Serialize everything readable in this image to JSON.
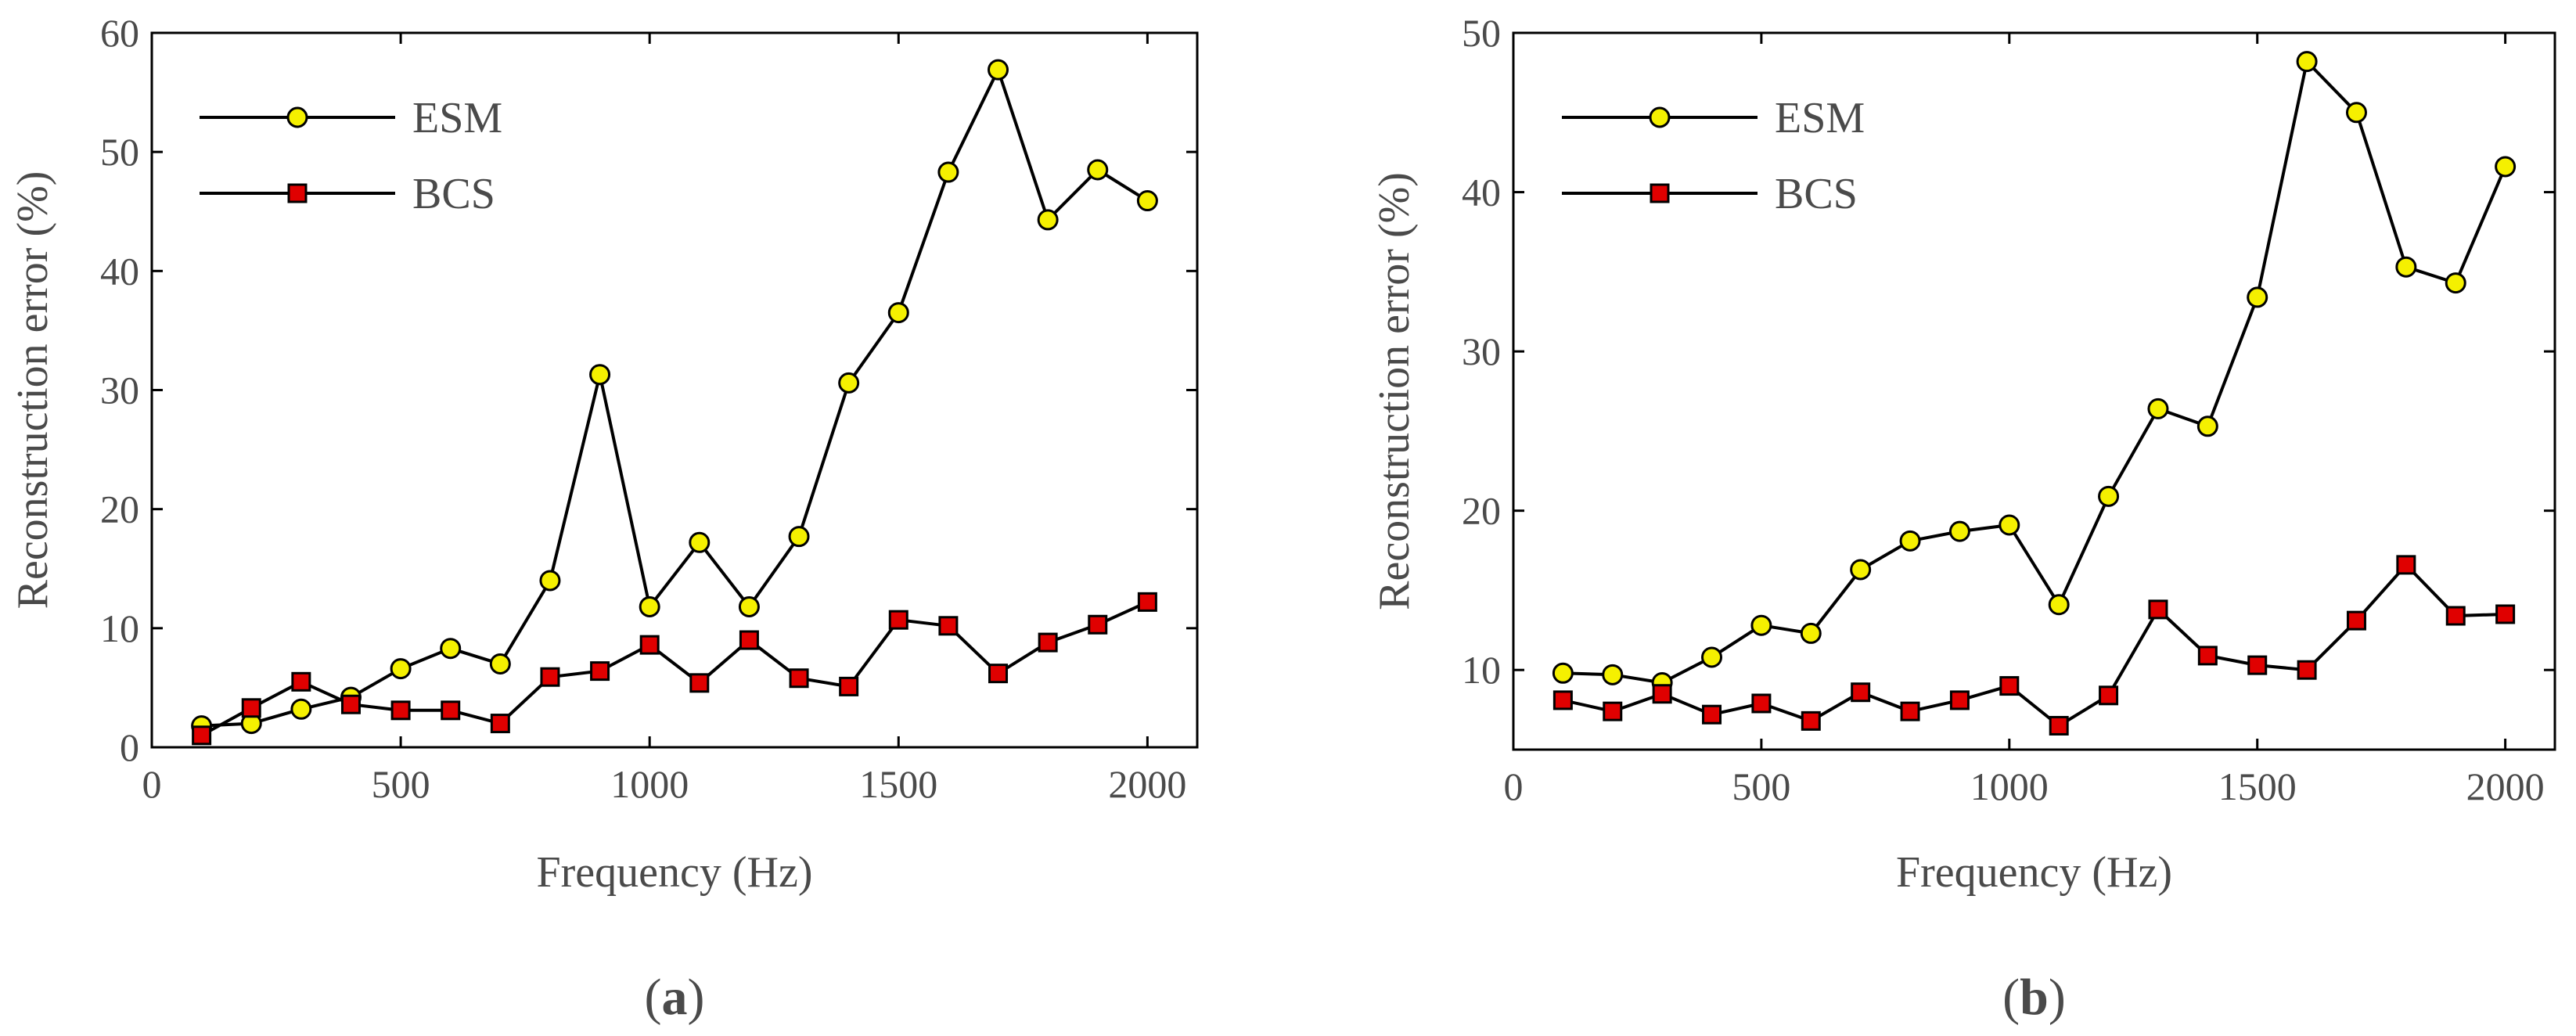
{
  "chart_data": [
    {
      "type": "line",
      "panel_label": "a",
      "xlabel": "Frequency (Hz)",
      "ylabel": "Reconstruction error (%)",
      "xlim": [
        0,
        2100
      ],
      "ylim": [
        0,
        60
      ],
      "xticks": [
        0,
        500,
        1000,
        1500,
        2000
      ],
      "yticks": [
        0,
        10,
        20,
        30,
        40,
        50,
        60
      ],
      "legend_position": "top-left",
      "x": [
        100,
        200,
        300,
        400,
        500,
        600,
        700,
        800,
        900,
        1000,
        1100,
        1200,
        1300,
        1400,
        1500,
        1600,
        1700,
        1800,
        1900,
        2000
      ],
      "series": [
        {
          "name": "ESM",
          "marker": "circle",
          "color": "#f5f000",
          "values": [
            1.8,
            2.0,
            3.2,
            4.2,
            6.6,
            8.3,
            7.0,
            14.0,
            31.3,
            11.8,
            17.2,
            11.8,
            17.7,
            30.6,
            36.5,
            48.3,
            56.9,
            44.3,
            48.5,
            45.9
          ]
        },
        {
          "name": "BCS",
          "marker": "square",
          "color": "#e00000",
          "values": [
            1.0,
            3.3,
            5.5,
            3.6,
            3.1,
            3.1,
            2.0,
            5.9,
            6.4,
            8.6,
            5.4,
            9.0,
            5.8,
            5.1,
            10.7,
            10.2,
            6.2,
            8.8,
            10.3,
            12.2
          ]
        }
      ]
    },
    {
      "type": "line",
      "panel_label": "b",
      "xlabel": "Frequency (Hz)",
      "ylabel": "Reconstruction error (%)",
      "xlim": [
        0,
        2100
      ],
      "ylim": [
        5,
        50
      ],
      "xticks": [
        0,
        500,
        1000,
        1500,
        2000
      ],
      "yticks": [
        10,
        20,
        30,
        40,
        50
      ],
      "legend_position": "top-left",
      "x": [
        100,
        200,
        300,
        400,
        500,
        600,
        700,
        800,
        900,
        1000,
        1100,
        1200,
        1300,
        1400,
        1500,
        1600,
        1700,
        1800,
        1900,
        2000
      ],
      "series": [
        {
          "name": "ESM",
          "marker": "circle",
          "color": "#f5f000",
          "values": [
            9.8,
            9.7,
            9.2,
            10.8,
            12.8,
            12.3,
            16.3,
            18.1,
            18.7,
            19.1,
            14.1,
            20.9,
            26.4,
            25.3,
            33.4,
            48.2,
            45.0,
            35.3,
            34.3,
            41.6
          ]
        },
        {
          "name": "BCS",
          "marker": "square",
          "color": "#e00000",
          "values": [
            8.1,
            7.4,
            8.5,
            7.2,
            7.9,
            6.8,
            8.6,
            7.4,
            8.1,
            9.0,
            6.5,
            8.4,
            13.8,
            10.9,
            10.3,
            10.0,
            13.1,
            16.6,
            13.4,
            13.5
          ]
        }
      ]
    }
  ]
}
